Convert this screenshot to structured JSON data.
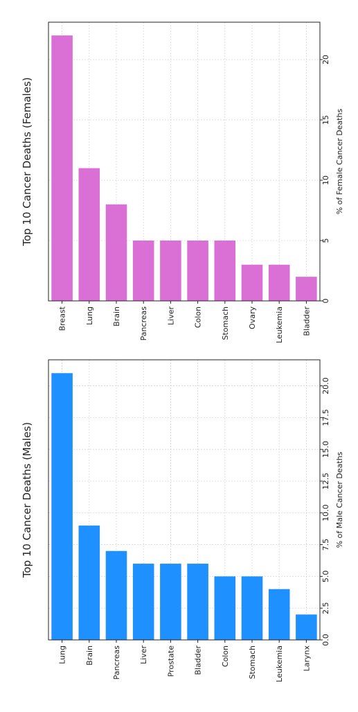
{
  "chart_data": [
    {
      "type": "bar",
      "orientation": "vertical",
      "rotation": "image rotated 90 degrees counter-clockwise",
      "title": "Top 10 Cancer Deaths (Females)",
      "ylabel": "% of Female Cancer Deaths",
      "xlabel": "",
      "categories": [
        "Breast",
        "Lung",
        "Brain",
        "Pancreas",
        "Liver",
        "Colon",
        "Stomach",
        "Ovary",
        "Leukemia",
        "Bladder"
      ],
      "values": [
        22,
        11,
        8,
        5,
        5,
        5,
        5,
        3,
        3,
        2
      ],
      "ylim": [
        0,
        23.1
      ],
      "yticks": [
        "0",
        "5",
        "10",
        "15",
        "20"
      ],
      "yticks_values": [
        0,
        5,
        10,
        15,
        20
      ],
      "grid": true,
      "color": "#da70d6"
    },
    {
      "type": "bar",
      "orientation": "vertical",
      "rotation": "image rotated 90 degrees counter-clockwise",
      "title": "Top 10 Cancer Deaths (Males)",
      "ylabel": "% of Male Cancer Deaths",
      "xlabel": "",
      "categories": [
        "Lung",
        "Brain",
        "Pancreas",
        "Liver",
        "Prostate",
        "Bladder",
        "Colon",
        "Stomach",
        "Leukemia",
        "Larynx"
      ],
      "values": [
        21,
        9,
        7,
        6,
        6,
        6,
        5,
        5,
        4,
        2
      ],
      "ylim": [
        0,
        22.05
      ],
      "yticks": [
        "0.0",
        "2.5",
        "5.0",
        "7.5",
        "10.0",
        "12.5",
        "15.0",
        "17.5",
        "20.0"
      ],
      "yticks_values": [
        0,
        2.5,
        5,
        7.5,
        10,
        12.5,
        15,
        17.5,
        20
      ],
      "grid": true,
      "color": "#1e90ff"
    }
  ]
}
